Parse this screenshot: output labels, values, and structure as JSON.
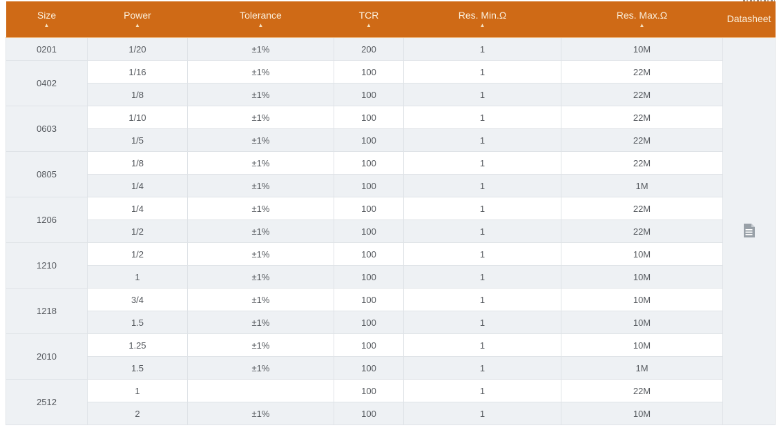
{
  "colors": {
    "header_bg": "#cf6a16",
    "header_text": "#fbf0dd",
    "header_divider": "#f2c08a",
    "row_stripe": "#eef1f4",
    "row_white": "#ffffff",
    "cell_border": "#dfe3e7",
    "body_text": "#55595e",
    "icon_gray": "#99a1a8"
  },
  "table": {
    "columns": [
      {
        "key": "size",
        "label": "Size",
        "sortable": true
      },
      {
        "key": "power",
        "label": "Power",
        "sortable": true
      },
      {
        "key": "tolerance",
        "label": "Tolerance",
        "sortable": true
      },
      {
        "key": "tcr",
        "label": "TCR",
        "sortable": true
      },
      {
        "key": "res_min",
        "label": "Res. Min.Ω",
        "sortable": true
      },
      {
        "key": "res_max",
        "label": "Res. Max.Ω",
        "sortable": true
      },
      {
        "key": "datasheet",
        "label": "Datasheet",
        "sortable": false
      }
    ],
    "sort_arrow_glyph": "▲",
    "groups": [
      {
        "size": "0201",
        "rows": [
          {
            "power": "1/20",
            "tolerance": "±1%",
            "tcr": "200",
            "res_min": "1",
            "res_max": "10M"
          }
        ]
      },
      {
        "size": "0402",
        "rows": [
          {
            "power": "1/16",
            "tolerance": "±1%",
            "tcr": "100",
            "res_min": "1",
            "res_max": "22M"
          },
          {
            "power": "1/8",
            "tolerance": "±1%",
            "tcr": "100",
            "res_min": "1",
            "res_max": "22M"
          }
        ]
      },
      {
        "size": "0603",
        "rows": [
          {
            "power": "1/10",
            "tolerance": "±1%",
            "tcr": "100",
            "res_min": "1",
            "res_max": "22M"
          },
          {
            "power": "1/5",
            "tolerance": "±1%",
            "tcr": "100",
            "res_min": "1",
            "res_max": "22M"
          }
        ]
      },
      {
        "size": "0805",
        "rows": [
          {
            "power": "1/8",
            "tolerance": "±1%",
            "tcr": "100",
            "res_min": "1",
            "res_max": "22M"
          },
          {
            "power": "1/4",
            "tolerance": "±1%",
            "tcr": "100",
            "res_min": "1",
            "res_max": "1M"
          }
        ]
      },
      {
        "size": "1206",
        "rows": [
          {
            "power": "1/4",
            "tolerance": "±1%",
            "tcr": "100",
            "res_min": "1",
            "res_max": "22M"
          },
          {
            "power": "1/2",
            "tolerance": "±1%",
            "tcr": "100",
            "res_min": "1",
            "res_max": "22M"
          }
        ]
      },
      {
        "size": "1210",
        "rows": [
          {
            "power": "1/2",
            "tolerance": "±1%",
            "tcr": "100",
            "res_min": "1",
            "res_max": "10M"
          },
          {
            "power": "1",
            "tolerance": "±1%",
            "tcr": "100",
            "res_min": "1",
            "res_max": "10M"
          }
        ]
      },
      {
        "size": "1218",
        "rows": [
          {
            "power": "3/4",
            "tolerance": "±1%",
            "tcr": "100",
            "res_min": "1",
            "res_max": "10M"
          },
          {
            "power": "1.5",
            "tolerance": "±1%",
            "tcr": "100",
            "res_min": "1",
            "res_max": "10M"
          }
        ]
      },
      {
        "size": "2010",
        "rows": [
          {
            "power": "1.25",
            "tolerance": "±1%",
            "tcr": "100",
            "res_min": "1",
            "res_max": "10M"
          },
          {
            "power": "1.5",
            "tolerance": "±1%",
            "tcr": "100",
            "res_min": "1",
            "res_max": "1M"
          }
        ]
      },
      {
        "size": "2512",
        "rows": [
          {
            "power": "1",
            "tolerance": "",
            "tcr": "100",
            "res_min": "1",
            "res_max": "22M"
          },
          {
            "power": "2",
            "tolerance": "±1%",
            "tcr": "100",
            "res_min": "1",
            "res_max": "10M"
          }
        ]
      }
    ],
    "datasheet_icon": "document-icon"
  }
}
